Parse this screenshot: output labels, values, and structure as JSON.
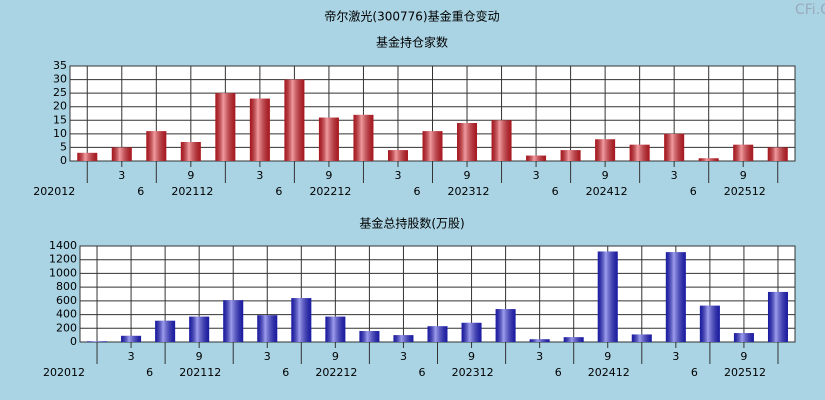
{
  "watermark": "CFi.CN",
  "chart_data": [
    {
      "type": "bar",
      "title": "帝尔激光(300776)基金重仓变动",
      "subtitle": "基金持仓家数",
      "categories": [
        "202012",
        "3",
        "6",
        "9",
        "202112",
        "3",
        "6",
        "9",
        "202212",
        "3",
        "6",
        "9",
        "202312",
        "3",
        "6",
        "9",
        "202412",
        "3",
        "6",
        "9",
        "202512"
      ],
      "values": [
        3,
        5,
        11,
        7,
        25,
        23,
        30,
        16,
        17,
        4,
        11,
        14,
        15,
        2,
        4,
        8,
        6,
        10,
        1,
        6,
        5
      ],
      "color": "#e0202a",
      "ylim": [
        0,
        35
      ],
      "yticks": [
        0,
        5,
        10,
        15,
        20,
        25,
        30,
        35
      ],
      "grid": true
    },
    {
      "type": "bar",
      "title": "基金总持股数(万股)",
      "categories": [
        "202012",
        "3",
        "6",
        "9",
        "202112",
        "3",
        "6",
        "9",
        "202212",
        "3",
        "6",
        "9",
        "202312",
        "3",
        "6",
        "9",
        "202412",
        "3",
        "6",
        "9",
        "202512"
      ],
      "values": [
        10,
        90,
        310,
        370,
        610,
        390,
        640,
        370,
        160,
        100,
        230,
        280,
        480,
        40,
        70,
        1320,
        110,
        1310,
        530,
        130,
        730
      ],
      "color": "#2424d8",
      "ylim": [
        0,
        1400
      ],
      "yticks": [
        0,
        200,
        400,
        600,
        800,
        1000,
        1200,
        1400
      ],
      "grid": true
    }
  ]
}
